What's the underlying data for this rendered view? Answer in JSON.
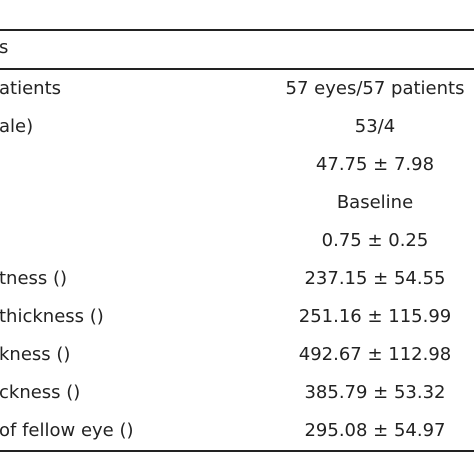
{
  "table": {
    "header": "s",
    "rows": [
      {
        "label": "atients",
        "value": "57 eyes/57 patients"
      },
      {
        "label": "ale)",
        "value": "53/4"
      },
      {
        "label": "",
        "value": "47.75 ± 7.98"
      },
      {
        "label": "",
        "value": "Baseline"
      },
      {
        "label": "",
        "value": "0.75 ± 0.25"
      },
      {
        "label": "tness ()",
        "value": "237.15 ± 54.55"
      },
      {
        "label": "thickness ()",
        "value": "251.16 ± 115.99"
      },
      {
        "label": "kness ()",
        "value": "492.67 ± 112.98"
      },
      {
        "label": "ckness ()",
        "value": "385.79 ± 53.32"
      },
      {
        "label": " of fellow eye ()",
        "value": "295.08 ± 54.97"
      }
    ]
  }
}
